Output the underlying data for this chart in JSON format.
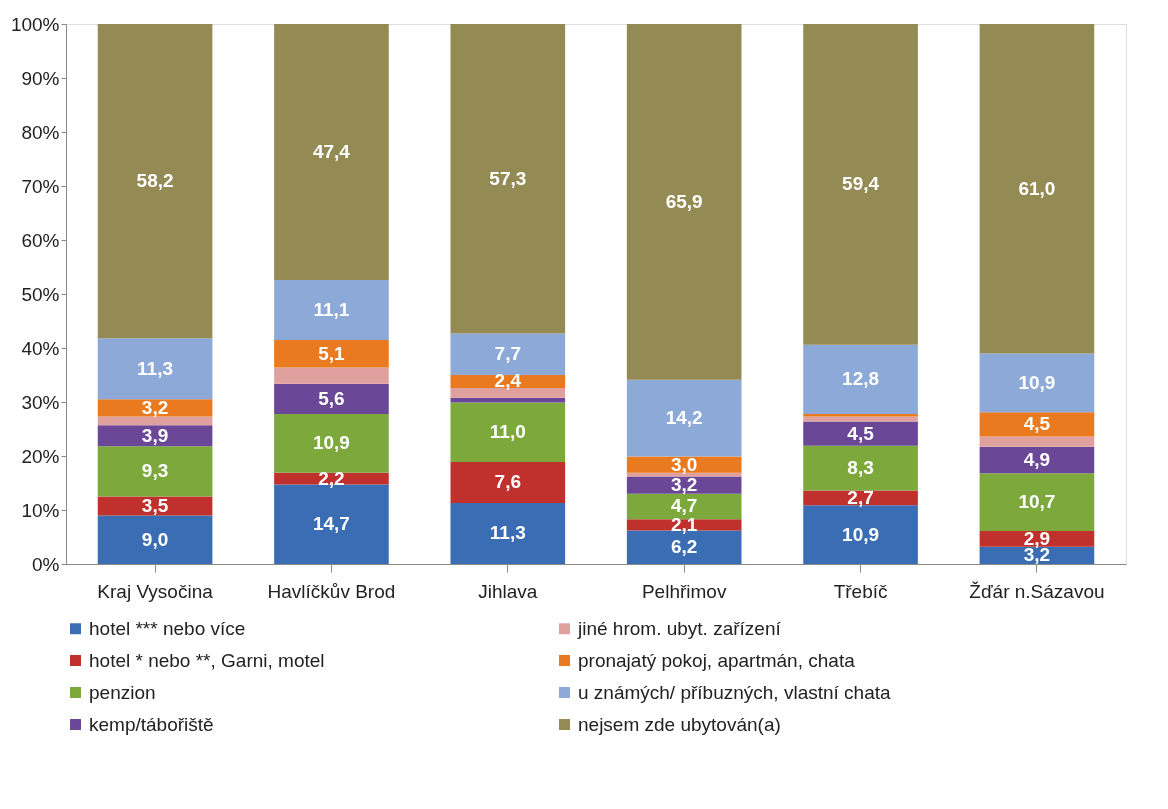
{
  "chart_data": {
    "type": "bar",
    "stacked": true,
    "legend": "bottom",
    "grid": false,
    "categories": [
      "Kraj Vysočina",
      "Havlíčkův Brod",
      "Jihlava",
      "Pelhřimov",
      "Třebíč",
      "Žďár n.Sázavou"
    ],
    "ylim": [
      0,
      100
    ],
    "yticks": [
      {
        "value": 0,
        "label": "0%"
      },
      {
        "value": 10,
        "label": "10%"
      },
      {
        "value": 20,
        "label": "20%"
      },
      {
        "value": 30,
        "label": "30%"
      },
      {
        "value": 40,
        "label": "40%"
      },
      {
        "value": 50,
        "label": "50%"
      },
      {
        "value": 60,
        "label": "60%"
      },
      {
        "value": 70,
        "label": "70%"
      },
      {
        "value": 80,
        "label": "80%"
      },
      {
        "value": 90,
        "label": "90%"
      },
      {
        "value": 100,
        "label": "100%"
      }
    ],
    "series": [
      {
        "name": "hotel *** nebo více",
        "color": "#3a6db3",
        "values": [
          9.0,
          14.7,
          11.3,
          6.2,
          10.9,
          3.2
        ],
        "value_labels": [
          "9,0",
          "14,7",
          "11,3",
          "6,2",
          "10,9",
          "3,2"
        ]
      },
      {
        "name": "hotel * nebo **, Garni, motel",
        "color": "#c0302c",
        "values": [
          3.5,
          2.2,
          7.6,
          2.1,
          2.7,
          2.9
        ],
        "value_labels": [
          "3,5",
          "2,2",
          "7,6",
          "2,1",
          "2,7",
          "2,9"
        ]
      },
      {
        "name": "penzion",
        "color": "#7ca83c",
        "values": [
          9.3,
          10.9,
          11.0,
          4.7,
          8.3,
          10.7
        ],
        "value_labels": [
          "9,3",
          "10,9",
          "11,0",
          "4,7",
          "8,3",
          "10,7"
        ]
      },
      {
        "name": "kemp/tábořiště",
        "color": "#6b4897",
        "values": [
          3.9,
          5.6,
          0.9,
          3.2,
          4.5,
          4.9
        ],
        "value_labels": [
          "3,9",
          "5,6",
          null,
          "3,2",
          "4,5",
          "4,9"
        ]
      },
      {
        "name": "jiné hrom. ubyt. zařízení",
        "color": "#e0a09e",
        "values": [
          1.6,
          3.0,
          1.8,
          0.7,
          0.9,
          1.9
        ],
        "value_labels": [
          null,
          null,
          null,
          null,
          null,
          null
        ]
      },
      {
        "name": "pronajatý pokoj, apartmán, chata",
        "color": "#ea7a1f",
        "values": [
          3.2,
          5.1,
          2.4,
          3.0,
          0.5,
          4.5
        ],
        "value_labels": [
          "3,2",
          "5,1",
          "2,4",
          "3,0",
          null,
          "4,5"
        ]
      },
      {
        "name": "u známých/ příbuzných, vlastní chata",
        "color": "#8ca9d7",
        "values": [
          11.3,
          11.1,
          7.7,
          14.2,
          12.8,
          10.9
        ],
        "value_labels": [
          "11,3",
          "11,1",
          "7,7",
          "14,2",
          "12,8",
          "10,9"
        ]
      },
      {
        "name": "nejsem zde ubytován(a)",
        "color": "#948a54",
        "values": [
          58.2,
          47.4,
          57.3,
          65.9,
          59.4,
          61.0
        ],
        "value_labels": [
          "58,2",
          "47,4",
          "57,3",
          "65,9",
          "59,4",
          "61,0"
        ]
      }
    ]
  }
}
